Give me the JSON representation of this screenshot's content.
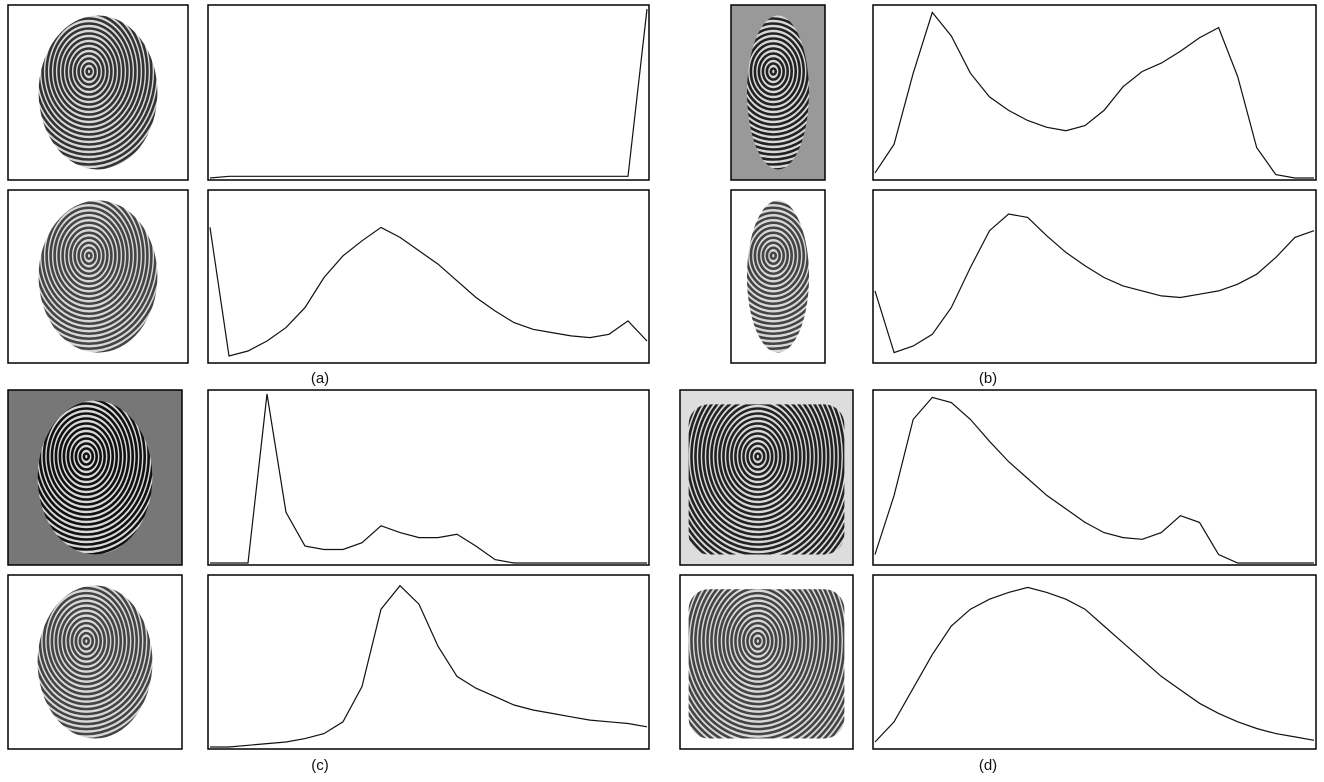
{
  "ylim": [
    0,
    100
  ],
  "panels": [
    {
      "label": "(a)",
      "histograms": [
        [
          0,
          1,
          1,
          1,
          1,
          1,
          1,
          1,
          1,
          1,
          1,
          1,
          1,
          1,
          1,
          1,
          1,
          1,
          1,
          1,
          1,
          1,
          1,
          100
        ],
        [
          80,
          3,
          6,
          12,
          20,
          32,
          50,
          63,
          72,
          80,
          74,
          66,
          58,
          48,
          38,
          30,
          23,
          19,
          17,
          15,
          14,
          16,
          24,
          12
        ]
      ]
    },
    {
      "label": "(b)",
      "histograms": [
        [
          3,
          20,
          62,
          98,
          84,
          62,
          48,
          40,
          34,
          30,
          28,
          31,
          40,
          54,
          63,
          68,
          75,
          83,
          89,
          60,
          18,
          2,
          0,
          0
        ],
        [
          42,
          5,
          9,
          16,
          32,
          56,
          78,
          88,
          86,
          75,
          65,
          57,
          50,
          45,
          42,
          39,
          38,
          40,
          42,
          46,
          52,
          62,
          74,
          78
        ]
      ]
    },
    {
      "label": "(c)",
      "histograms": [
        [
          0,
          0,
          0,
          100,
          30,
          10,
          8,
          8,
          12,
          22,
          18,
          15,
          15,
          17,
          10,
          2,
          0,
          0,
          0,
          0,
          0,
          0,
          0,
          0
        ],
        [
          0,
          0,
          1,
          2,
          3,
          5,
          8,
          15,
          36,
          82,
          96,
          85,
          60,
          42,
          35,
          30,
          25,
          22,
          20,
          18,
          16,
          15,
          14,
          12
        ]
      ]
    },
    {
      "label": "(d)",
      "histograms": [
        [
          5,
          40,
          85,
          98,
          95,
          85,
          72,
          60,
          50,
          40,
          32,
          24,
          18,
          15,
          14,
          18,
          28,
          24,
          5,
          0,
          0,
          0,
          0,
          0
        ],
        [
          3,
          15,
          35,
          55,
          72,
          82,
          88,
          92,
          95,
          92,
          88,
          82,
          72,
          62,
          52,
          42,
          34,
          26,
          20,
          15,
          11,
          8,
          6,
          4
        ]
      ]
    }
  ]
}
